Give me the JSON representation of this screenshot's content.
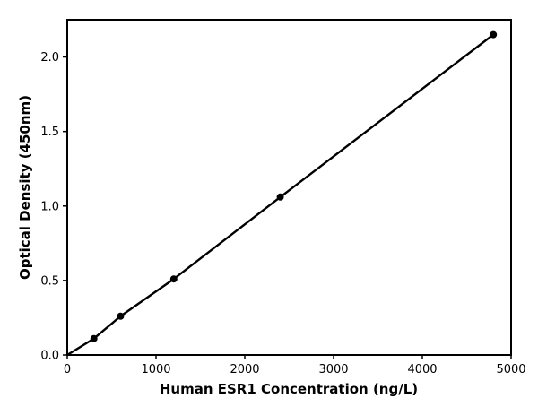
{
  "chart_data": {
    "type": "scatter",
    "title": "",
    "xlabel": "Human ESR1 Concentration (ng/L)",
    "ylabel": "Optical Density (450nm)",
    "xlim": [
      0,
      5000
    ],
    "ylim": [
      0,
      2.25
    ],
    "x_ticks": [
      0,
      1000,
      2000,
      3000,
      4000,
      5000
    ],
    "x_tick_labels": [
      "0",
      "1000",
      "2000",
      "3000",
      "4000",
      "5000"
    ],
    "y_ticks": [
      0,
      0.5,
      1.0,
      1.5,
      2.0
    ],
    "y_tick_labels": [
      "0.0",
      "0.5",
      "1.0",
      "1.5",
      "2.0"
    ],
    "grid": false,
    "legend": "none",
    "series": [
      {
        "type": "scatter",
        "x": [
          300,
          600,
          1200,
          2400,
          4800
        ],
        "y": [
          0.11,
          0.26,
          0.51,
          1.06,
          2.15
        ]
      },
      {
        "type": "line",
        "x": [
          0,
          300,
          600,
          1200,
          2400,
          4800
        ],
        "y": [
          0.0,
          0.11,
          0.26,
          0.51,
          1.06,
          2.15
        ]
      }
    ],
    "colors": {
      "marker": "#000000",
      "line": "#000000",
      "axes": "#000000"
    }
  }
}
